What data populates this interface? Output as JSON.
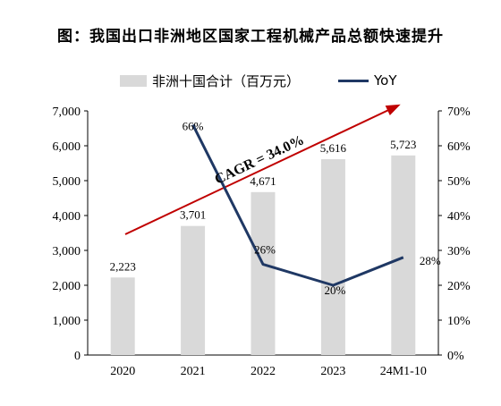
{
  "title": "图：我国出口非洲地区国家工程机械产品总额快速提升",
  "legend": {
    "bar_label": "非洲十国合计（百万元）",
    "line_label": "YoY"
  },
  "annotation": {
    "text": "CAGR = 34.0%",
    "arrow_color": "#c00000"
  },
  "colors": {
    "bar": "#d9d9d9",
    "line": "#1f3864",
    "axis": "#000000"
  },
  "chart_data": {
    "type": "bar",
    "categories": [
      "2020",
      "2021",
      "2022",
      "2023",
      "24M1-10"
    ],
    "series": [
      {
        "name": "非洲十国合计（百万元）",
        "type": "bar",
        "axis": "left",
        "values": [
          2223,
          3701,
          4671,
          5616,
          5723
        ],
        "value_labels": [
          "2,223",
          "3,701",
          "4,671",
          "5,616",
          "5,723"
        ]
      },
      {
        "name": "YoY",
        "type": "line",
        "axis": "right",
        "values": [
          null,
          66,
          26,
          20,
          28
        ],
        "value_labels": [
          "",
          "66%",
          "26%",
          "20%",
          "28%"
        ]
      }
    ],
    "ylim_left": [
      0,
      7000
    ],
    "yticks_left": [
      "0",
      "1,000",
      "2,000",
      "3,000",
      "4,000",
      "5,000",
      "6,000",
      "7,000"
    ],
    "ylim_right": [
      0,
      70
    ],
    "yticks_right": [
      "0%",
      "10%",
      "20%",
      "30%",
      "40%",
      "50%",
      "60%",
      "70%"
    ],
    "grid": false,
    "legend_position": "top-center"
  }
}
